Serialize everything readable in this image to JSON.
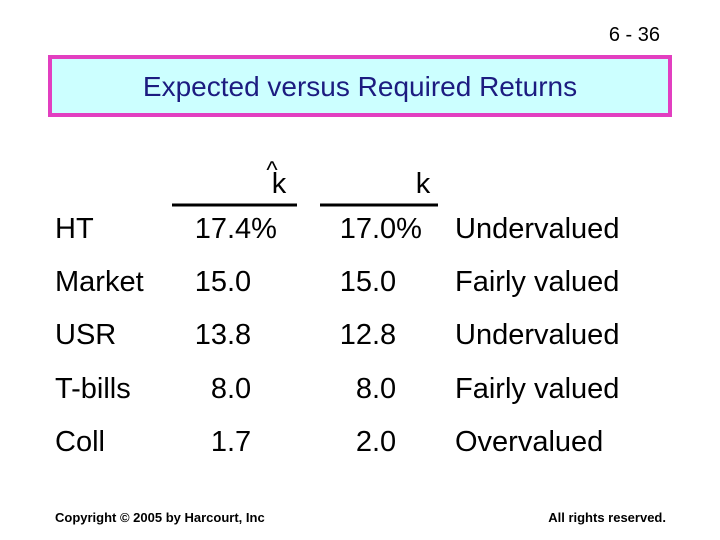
{
  "slide_number": "6 - 36",
  "title": "Expected versus Required Returns",
  "table": {
    "headers": [
      {
        "hat": "^",
        "symbol": "k"
      },
      {
        "symbol": "k"
      }
    ],
    "rows": [
      [
        "HT",
        "17.4%",
        "17.0%",
        "Undervalued"
      ],
      [
        "Market",
        "15.0",
        "15.0",
        "Fairly valued"
      ],
      [
        "USR",
        "13.8",
        "12.8",
        "Undervalued"
      ],
      [
        "T-bills",
        "8.0",
        "8.0",
        "Fairly valued"
      ],
      [
        "Coll",
        "1.7",
        "2.0",
        "Overvalued"
      ]
    ]
  },
  "footer": {
    "copyright": "Copyright © 2005 by Harcourt, Inc",
    "rights": "All rights reserved."
  }
}
